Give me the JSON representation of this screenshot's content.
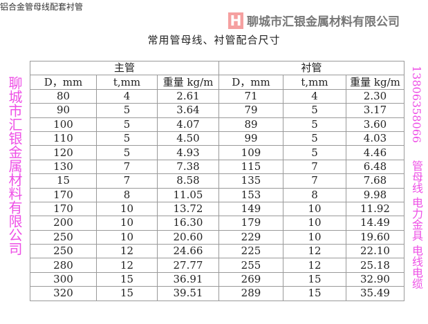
{
  "page_heading": "铝合金管母线配套衬管",
  "title": "常用管母线、衬管配合尺寸",
  "groups": {
    "main": "主管",
    "liner": "衬管"
  },
  "columns": [
    "D，mm",
    "t,mm",
    "重量 kg/m",
    "D，mm",
    "t,mm",
    "重量 kg/m"
  ],
  "rows": [
    [
      "80",
      "4",
      "2.61",
      "71",
      "4",
      "2.30"
    ],
    [
      "90",
      "5",
      "3.64",
      "79",
      "5",
      "3.17"
    ],
    [
      "100",
      "5",
      "4.07",
      "89",
      "5",
      "3.60"
    ],
    [
      "110",
      "5",
      "4.50",
      "99",
      "5",
      "4.03"
    ],
    [
      "120",
      "5",
      "4.93",
      "109",
      "5",
      "4.46"
    ],
    [
      "130",
      "7",
      "7.38",
      "115",
      "7",
      "6.48"
    ],
    [
      "15",
      "7",
      "8.58",
      "135",
      "7",
      "7.68"
    ],
    [
      "170",
      "8",
      "11.05",
      "153",
      "8",
      "9.98"
    ],
    [
      "170",
      "10",
      "13.72",
      "149",
      "10",
      "11.92"
    ],
    [
      "200",
      "10",
      "16.30",
      "179",
      "10",
      "14.49"
    ],
    [
      "250",
      "10",
      "20.60",
      "229",
      "10",
      "19.60"
    ],
    [
      "250",
      "12",
      "24.66",
      "225",
      "12",
      "22.10"
    ],
    [
      "280",
      "12",
      "27.77",
      "255",
      "12",
      "25.18"
    ],
    [
      "300",
      "15",
      "36.91",
      "269",
      "15",
      "32.90"
    ],
    [
      "320",
      "15",
      "39.51",
      "289",
      "15",
      "35.49"
    ]
  ],
  "watermarks": {
    "company": "聊城市汇银金属材料有限公司",
    "logo_letter": "H",
    "logo_name": "聊城市汇银金属材料有限公司",
    "phone": "13806358066",
    "products": "管母线 电力金具 电线电缆"
  }
}
